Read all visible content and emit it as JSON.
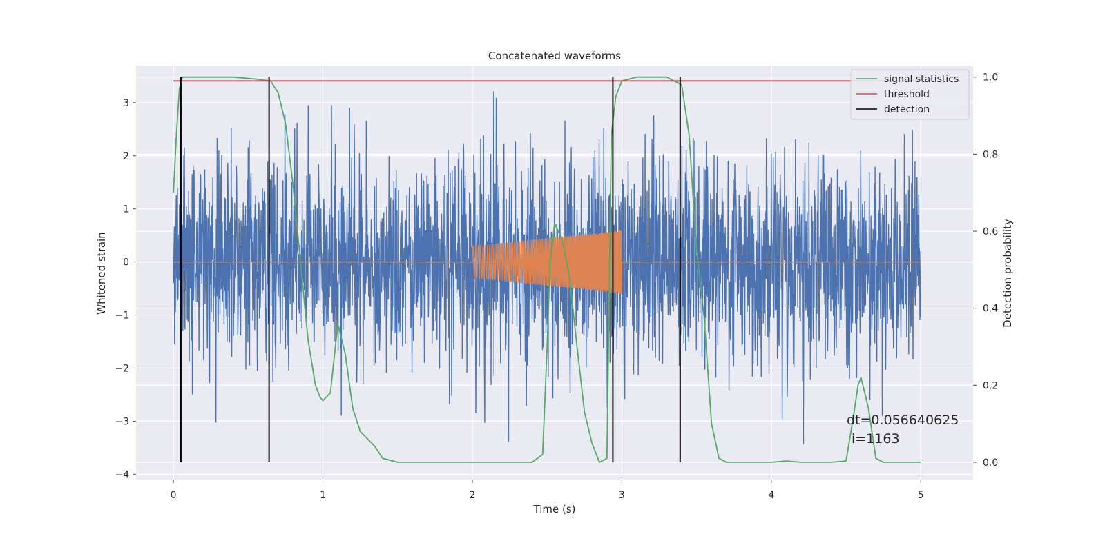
{
  "chart_data": {
    "type": "line",
    "title": "Concatenated waveforms",
    "xlabel": "Time (s)",
    "ylabel_left": "Whitened strain",
    "ylabel_right": "Detection probability",
    "xlim": [
      -0.25,
      5.35
    ],
    "ylim_left": [
      -4.1,
      3.7
    ],
    "ylim_right": [
      -0.045,
      1.03
    ],
    "xticks": [
      0,
      1,
      2,
      3,
      4,
      5
    ],
    "yticks_left": [
      -4,
      -3,
      -2,
      -1,
      0,
      1,
      2,
      3
    ],
    "yticks_right": [
      0.0,
      0.2,
      0.4,
      0.6,
      0.8,
      1.0
    ],
    "ytick_labels_left": [
      "−4",
      "−3",
      "−2",
      "−1",
      "0",
      "1",
      "2",
      "3"
    ],
    "ytick_labels_right": [
      "0.0",
      "0.2",
      "0.4",
      "0.6",
      "0.8",
      "1.0"
    ],
    "grid": true,
    "legend_position": "top-right",
    "colors": {
      "background": "#eaeaf2",
      "grid": "#ffffff",
      "strain": "#4c72b0",
      "injected_signal": "#dd8452",
      "signal_statistics": "#55a868",
      "threshold": "#c44e52",
      "detection": "#000000"
    },
    "strain_noise": {
      "x_range": [
        0,
        5
      ],
      "typical_amplitude": 1.25,
      "peak_amplitude": 3.45,
      "note_visual": "dense noisy whitened strain"
    },
    "injected_signals": [
      {
        "x_range": [
          2.0,
          3.0
        ],
        "amplitude_start": 0.3,
        "amplitude_end": 0.6
      }
    ],
    "series": [
      {
        "name": "signal statistics",
        "axis": "right",
        "x": [
          0.0,
          0.02,
          0.04,
          0.06,
          0.08,
          0.1,
          0.2,
          0.4,
          0.55,
          0.65,
          0.7,
          0.75,
          0.8,
          0.85,
          0.9,
          0.95,
          0.98,
          1.0,
          1.05,
          1.1,
          1.15,
          1.2,
          1.25,
          1.3,
          1.35,
          1.4,
          1.5,
          2.0,
          2.4,
          2.47,
          2.5,
          2.52,
          2.55,
          2.6,
          2.65,
          2.7,
          2.75,
          2.8,
          2.85,
          2.9,
          2.93,
          2.96,
          3.0,
          3.1,
          3.3,
          3.4,
          3.45,
          3.5,
          3.55,
          3.6,
          3.65,
          3.7,
          3.8,
          4.0,
          4.1,
          4.2,
          4.4,
          4.5,
          4.55,
          4.58,
          4.6,
          4.65,
          4.7,
          4.75,
          5.0
        ],
        "values": [
          0.7,
          0.85,
          0.97,
          1.0,
          1.0,
          1.0,
          1.0,
          1.0,
          0.995,
          0.99,
          0.96,
          0.88,
          0.72,
          0.52,
          0.32,
          0.2,
          0.17,
          0.16,
          0.18,
          0.36,
          0.28,
          0.14,
          0.08,
          0.06,
          0.04,
          0.01,
          0.0,
          0.0,
          0.0,
          0.02,
          0.3,
          0.52,
          0.62,
          0.58,
          0.48,
          0.3,
          0.13,
          0.05,
          0.0,
          0.01,
          0.85,
          0.95,
          0.99,
          1.0,
          1.0,
          0.98,
          0.85,
          0.55,
          0.38,
          0.1,
          0.01,
          0.0,
          0.0,
          0.0,
          0.003,
          0.0,
          0.0,
          0.003,
          0.12,
          0.2,
          0.22,
          0.14,
          0.01,
          0.0,
          0.0
        ]
      },
      {
        "name": "threshold",
        "axis": "right",
        "x": [
          0,
          5
        ],
        "values": [
          0.99,
          0.99
        ]
      },
      {
        "name": "detection",
        "axis": "right",
        "type": "vlines",
        "x": [
          0.05,
          0.64,
          2.94,
          3.39
        ],
        "range": [
          0.0,
          1.0
        ]
      }
    ],
    "legend": [
      "signal statistics",
      "threshold",
      "detection"
    ],
    "annotations": [
      "dt=0.056640625",
      "i=1163"
    ]
  }
}
